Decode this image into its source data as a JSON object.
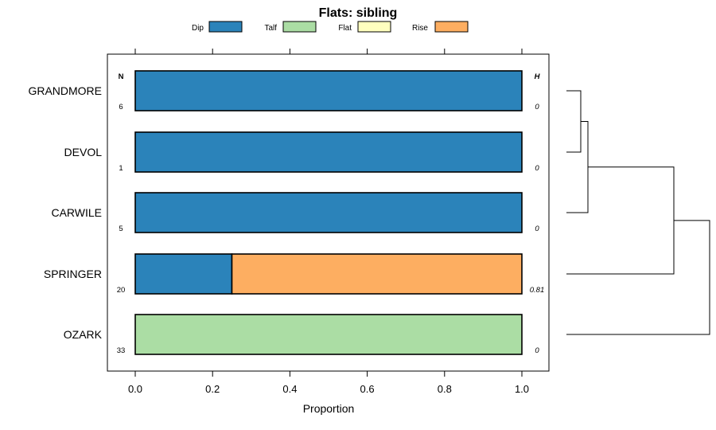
{
  "chart_data": {
    "type": "bar",
    "title": "Flats: sibling",
    "xlabel": "Proportion",
    "xlim": [
      0,
      1
    ],
    "x_ticks": [
      "0.0",
      "0.2",
      "0.4",
      "0.6",
      "0.8",
      "1.0"
    ],
    "x_tick_values": [
      0,
      0.2,
      0.4,
      0.6,
      0.8,
      1.0
    ],
    "n_header": "N",
    "h_header": "H",
    "legend": [
      {
        "name": "Dip",
        "color": "#2b83ba"
      },
      {
        "name": "Talf",
        "color": "#abdda4"
      },
      {
        "name": "Flat",
        "color": "#ffffbf"
      },
      {
        "name": "Rise",
        "color": "#fdae61"
      }
    ],
    "categories": [
      "GRANDMORE",
      "DEVOL",
      "CARWILE",
      "SPRINGER",
      "OZARK"
    ],
    "series": [
      {
        "name": "Dip",
        "color": "#2b83ba",
        "values": [
          1.0,
          1.0,
          1.0,
          0.25,
          0.0
        ]
      },
      {
        "name": "Talf",
        "color": "#abdda4",
        "values": [
          0.0,
          0.0,
          0.0,
          0.0,
          1.0
        ]
      },
      {
        "name": "Flat",
        "color": "#ffffbf",
        "values": [
          0.0,
          0.0,
          0.0,
          0.0,
          0.0
        ]
      },
      {
        "name": "Rise",
        "color": "#fdae61",
        "values": [
          0.0,
          0.0,
          0.0,
          0.75,
          0.0
        ]
      }
    ],
    "n_values": [
      "6",
      "1",
      "5",
      "20",
      "33"
    ],
    "h_values": [
      "0",
      "0",
      "0",
      "0.81",
      "0"
    ],
    "dendrogram": {
      "leaf_order": [
        "GRANDMORE",
        "DEVOL",
        "CARWILE",
        "SPRINGER",
        "OZARK"
      ],
      "merges": [
        {
          "a": "GRANDMORE",
          "b": "DEVOL",
          "height": 0.1
        },
        {
          "a": "GRANDMORE+DEVOL",
          "b": "CARWILE",
          "height": 0.15
        },
        {
          "a": "GRANDMORE+DEVOL+CARWILE",
          "b": "SPRINGER",
          "height": 0.75
        },
        {
          "a": "ALL4",
          "b": "OZARK",
          "height": 1.0
        }
      ]
    }
  }
}
